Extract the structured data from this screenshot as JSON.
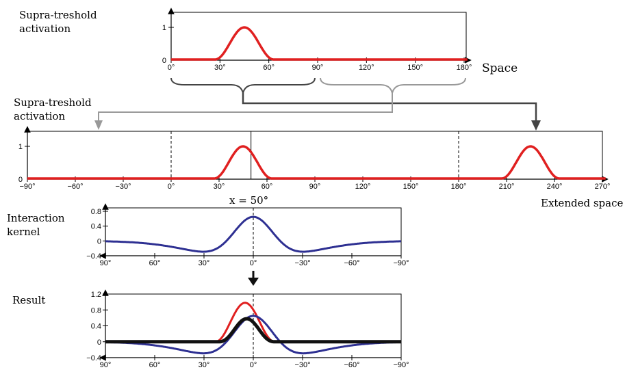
{
  "colors": {
    "activation": "#e02020",
    "kernel": "#2e3092",
    "result": "#111111",
    "bracket_dark": "#444444",
    "bracket_light": "#999999"
  },
  "panel1": {
    "ylabel_line1": "Supra-treshold",
    "ylabel_line2": "activation",
    "xlabel": "Space",
    "yticks": [
      "0",
      "1"
    ],
    "xticks": [
      "0°",
      "30°",
      "60°",
      "90°",
      "120°",
      "150°",
      "180°"
    ]
  },
  "panel2": {
    "ylabel_line1": "Supra-treshold",
    "ylabel_line2": "activation",
    "xlabel": "Extended space",
    "marker_label": "x = 50°",
    "yticks": [
      "0",
      "1"
    ],
    "xticks": [
      "−90°",
      "−60°",
      "−30°",
      "0°",
      "30°",
      "60°",
      "90°",
      "120°",
      "150°",
      "180°",
      "210°",
      "240°",
      "270°"
    ]
  },
  "panel3": {
    "ylabel_line1": "Interaction",
    "ylabel_line2": "kernel",
    "yticks": [
      "−0.4",
      "0",
      "0.4",
      "0.8"
    ],
    "xticks": [
      "90°",
      "60°",
      "30°",
      "0°",
      "−30°",
      "−60°",
      "−90°"
    ]
  },
  "panel4": {
    "ylabel": "Result",
    "yticks": [
      "−0.4",
      "0",
      "0.4",
      "0.8",
      "1.2"
    ],
    "xticks": [
      "90°",
      "60°",
      "30°",
      "0°",
      "−30°",
      "−60°",
      "−90°"
    ]
  },
  "chart_data": [
    {
      "type": "line",
      "name": "space",
      "xlim": [
        0,
        180
      ],
      "ylim": [
        0,
        1
      ],
      "series": [
        {
          "x": [
            30,
            45,
            60
          ],
          "bump_center": 45,
          "bump_height": 1
        }
      ]
    },
    {
      "type": "line",
      "name": "extended-space",
      "xlim": [
        -90,
        270
      ],
      "ylim": [
        0,
        1
      ],
      "dashed_lines": [
        0,
        180
      ],
      "solid_line": 50,
      "series": [
        {
          "bump_centers": [
            45,
            225
          ],
          "bump_height": 1
        }
      ]
    },
    {
      "type": "line",
      "name": "interaction-kernel",
      "xlim": [
        90,
        -90
      ],
      "ylim": [
        -0.4,
        0.8
      ],
      "peak": 0.65,
      "trough": -0.33
    },
    {
      "type": "line",
      "name": "result",
      "xlim": [
        90,
        -90
      ],
      "ylim": [
        -0.4,
        1.2
      ],
      "peak": 0.55
    }
  ]
}
